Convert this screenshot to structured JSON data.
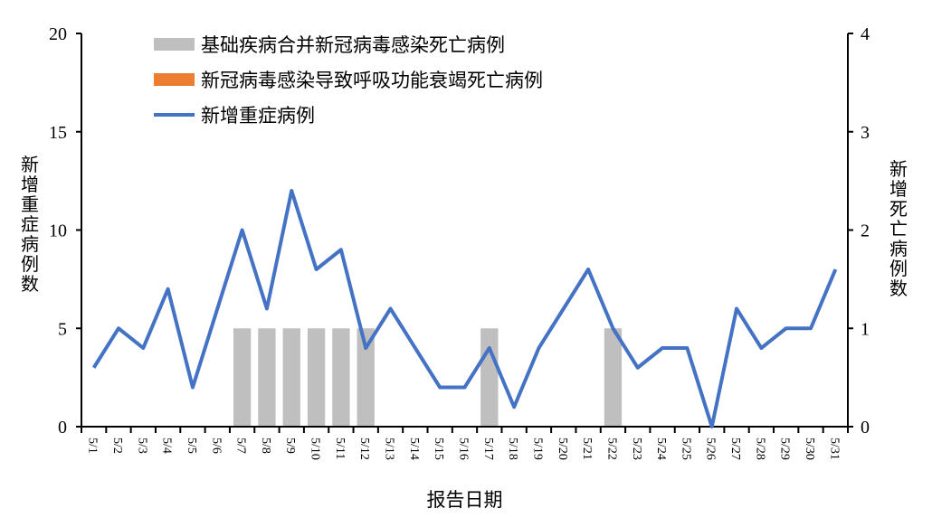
{
  "chart_data": {
    "type": "bar+line",
    "categories": [
      "5/1",
      "5/2",
      "5/3",
      "5/4",
      "5/5",
      "5/6",
      "5/7",
      "5/8",
      "5/9",
      "5/10",
      "5/11",
      "5/12",
      "5/13",
      "5/14",
      "5/15",
      "5/16",
      "5/17",
      "5/18",
      "5/19",
      "5/20",
      "5/21",
      "5/22",
      "5/23",
      "5/24",
      "5/25",
      "5/26",
      "5/27",
      "5/28",
      "5/29",
      "5/30",
      "5/31"
    ],
    "series": [
      {
        "name": "基础疾病合并新冠病毒感染死亡病例",
        "type": "bar",
        "axis": "right",
        "color": "#bfbfbf",
        "values": [
          0,
          0,
          0,
          0,
          0,
          0,
          1,
          1,
          1,
          1,
          1,
          1,
          0,
          0,
          0,
          0,
          1,
          0,
          0,
          0,
          0,
          1,
          0,
          0,
          0,
          0,
          0,
          0,
          0,
          0,
          0
        ]
      },
      {
        "name": "新冠病毒感染导致呼吸功能衰竭死亡病例",
        "type": "bar",
        "axis": "right",
        "color": "#ed7d31",
        "values": [
          0,
          0,
          0,
          0,
          0,
          0,
          0,
          0,
          0,
          0,
          0,
          0,
          0,
          0,
          0,
          0,
          0,
          0,
          0,
          0,
          0,
          0,
          0,
          0,
          0,
          0,
          0,
          0,
          0,
          0,
          0
        ]
      },
      {
        "name": "新增重症病例",
        "type": "line",
        "axis": "left",
        "color": "#4472c4",
        "values": [
          3,
          5,
          4,
          7,
          2,
          6,
          10,
          6,
          12,
          8,
          9,
          4,
          6,
          4,
          2,
          2,
          4,
          1,
          4,
          6,
          8,
          5,
          3,
          4,
          4,
          0,
          6,
          4,
          5,
          5,
          8
        ]
      }
    ],
    "xlabel": "报告日期",
    "ylabel": "新增重症病例数",
    "ylabel_right": "新增死亡病例数",
    "ylim": [
      0,
      20
    ],
    "yticks": [
      0,
      5,
      10,
      15,
      20
    ],
    "ylim_right": [
      0,
      4
    ],
    "yticks_right": [
      0,
      1,
      2,
      3,
      4
    ],
    "grid": false,
    "legend": "top-left"
  }
}
